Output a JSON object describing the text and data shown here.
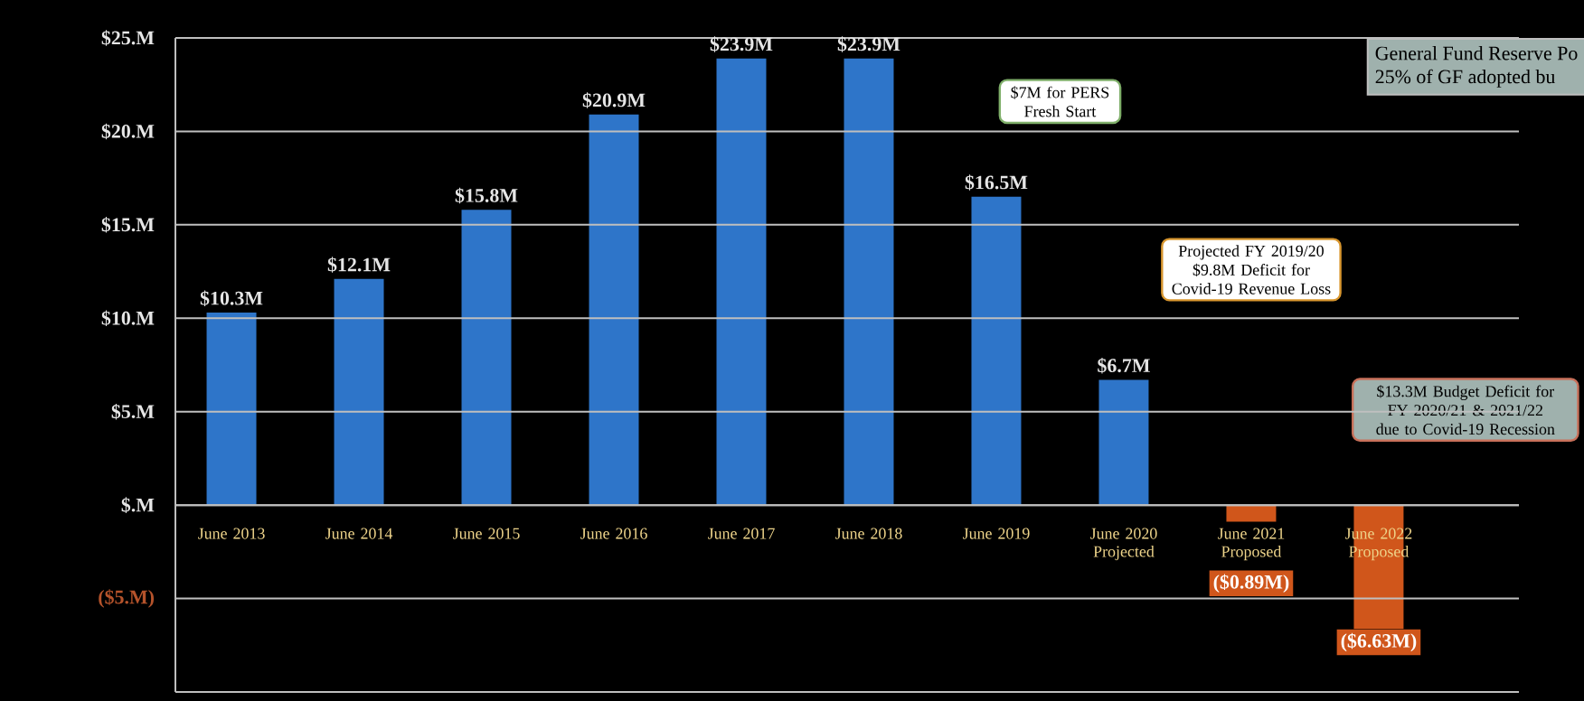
{
  "chart_data": {
    "type": "bar",
    "categories": [
      "June 2013",
      "June 2014",
      "June 2015",
      "June 2016",
      "June 2017",
      "June 2018",
      "June 2019",
      "June 2020 Projected",
      "June 2021 Proposed",
      "June 2022 Proposed"
    ],
    "values": [
      10.3,
      12.1,
      15.8,
      20.9,
      23.9,
      23.9,
      16.5,
      6.7,
      -0.89,
      -6.63
    ],
    "colors": [
      "#2e75c9",
      "#2e75c9",
      "#2e75c9",
      "#2e75c9",
      "#2e75c9",
      "#2e75c9",
      "#2e75c9",
      "#2e75c9",
      "#d0561b",
      "#d0561b"
    ],
    "value_labels": [
      "$10.3M",
      "$12.1M",
      "$15.8M",
      "$20.9M",
      "$23.9M",
      "$23.9M",
      "$16.5M",
      "$6.7M",
      "($0.89M)",
      "($6.63M)"
    ],
    "ylim": [
      -10,
      25
    ],
    "yticks": [
      {
        "value": -10,
        "label": null
      },
      {
        "value": -5,
        "label": "($5.M)"
      },
      {
        "value": 0,
        "label": "$.M"
      },
      {
        "value": 5,
        "label": "$5.M"
      },
      {
        "value": 10,
        "label": "$10.M"
      },
      {
        "value": 15,
        "label": "$15.M"
      },
      {
        "value": 20,
        "label": "$20.M"
      },
      {
        "value": 25,
        "label": "$25.M"
      }
    ],
    "grid": "y",
    "annotations": [
      "$7M for PERS Fresh Start",
      "Projected FY 2019/20 $9.8M Deficit for Covid-19 Revenue Loss",
      "$13.3M Budget Deficit for FY 2020/21 & 2021/22 due to Covid-19 Recession",
      "General Fund Reserve Po",
      "25% of GF adopted bu"
    ]
  }
}
